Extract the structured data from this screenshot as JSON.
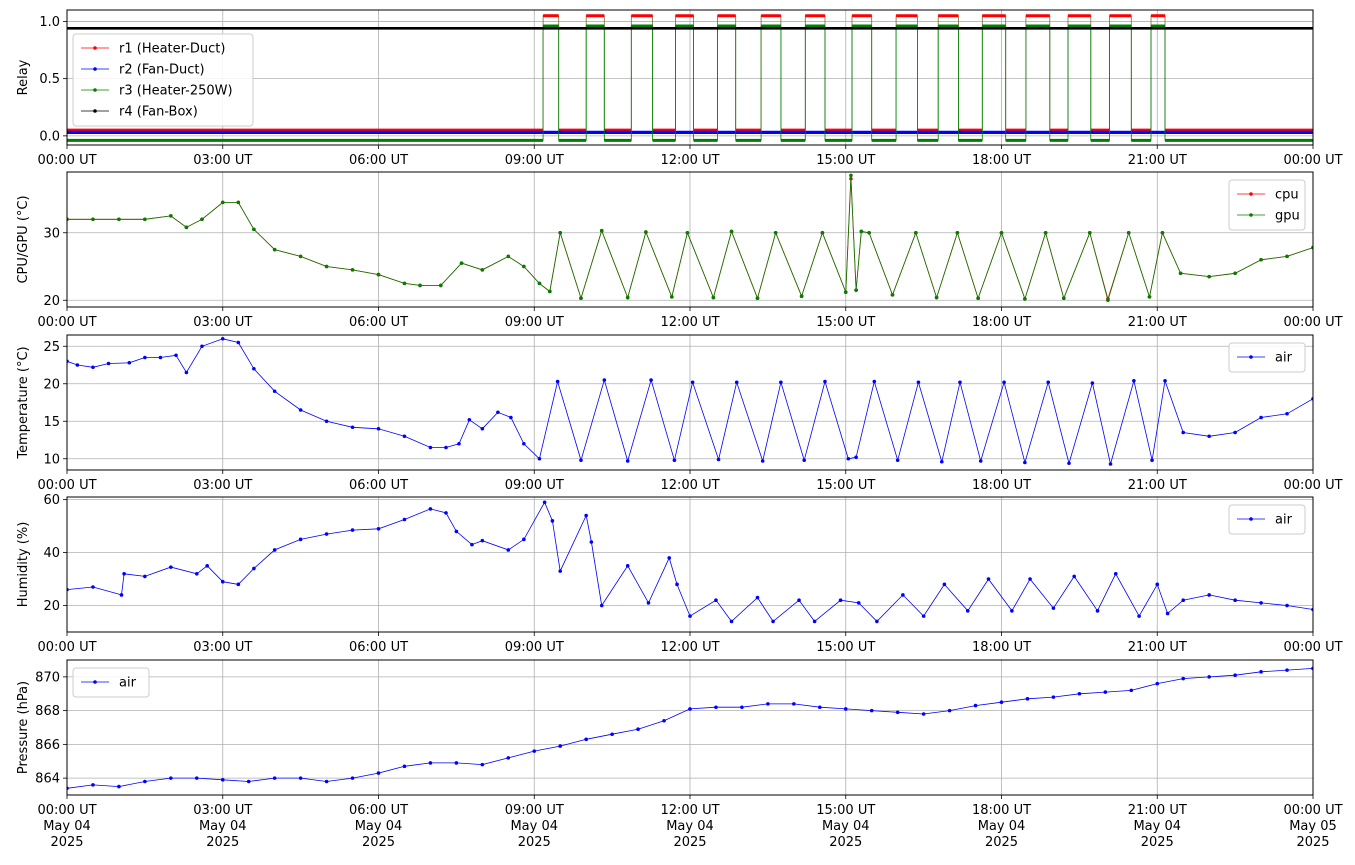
{
  "chart_data": [
    {
      "type": "line",
      "ylabel": "Relay",
      "ylim": [
        -0.08,
        1.1
      ],
      "yticks": [
        0.0,
        0.5,
        1.0
      ],
      "ytick_labels": [
        "0.0",
        "0.5",
        "1.0"
      ],
      "x_tick_labels": [
        "00:00 UT",
        "03:00 UT",
        "06:00 UT",
        "09:00 UT",
        "12:00 UT",
        "15:00 UT",
        "18:00 UT",
        "21:00 UT",
        "00:00 UT"
      ],
      "grid": true,
      "legend_position": "left",
      "legend": [
        "r1 (Heater-Duct)",
        "r2 (Fan-Duct)",
        "r3 (Heater-250W)",
        "r4 (Fan-Box)"
      ],
      "colors": {
        "r1": "#ff0000",
        "r2": "#0000ff",
        "r3": "#008000",
        "r4": "#000000"
      },
      "series": [
        {
          "name": "r1 (Heater-Duct)",
          "on_intervals": [
            [
              9.17,
              9.47
            ],
            [
              10.0,
              10.35
            ],
            [
              10.87,
              11.28
            ],
            [
              11.72,
              12.07
            ],
            [
              12.53,
              12.88
            ],
            [
              13.37,
              13.75
            ],
            [
              14.22,
              14.6
            ],
            [
              15.12,
              15.5
            ],
            [
              15.97,
              16.38
            ],
            [
              16.78,
              17.17
            ],
            [
              17.63,
              18.08
            ],
            [
              18.47,
              18.93
            ],
            [
              19.28,
              19.72
            ],
            [
              20.08,
              20.5
            ],
            [
              20.88,
              21.15
            ]
          ],
          "on_value": 1.05,
          "off_value": 0.05
        },
        {
          "name": "r2 (Fan-Duct)",
          "value": 0.03
        },
        {
          "name": "r3 (Heater-250W)",
          "on_intervals": [
            [
              9.17,
              9.47
            ],
            [
              10.0,
              10.35
            ],
            [
              10.87,
              11.28
            ],
            [
              11.72,
              12.07
            ],
            [
              12.53,
              12.88
            ],
            [
              13.37,
              13.75
            ],
            [
              14.22,
              14.6
            ],
            [
              15.12,
              15.5
            ],
            [
              15.97,
              16.38
            ],
            [
              16.78,
              17.17
            ],
            [
              17.63,
              18.08
            ],
            [
              18.47,
              18.93
            ],
            [
              19.28,
              19.72
            ],
            [
              20.08,
              20.5
            ],
            [
              20.88,
              21.15
            ]
          ],
          "on_value": 0.96,
          "off_value": -0.04
        },
        {
          "name": "r4 (Fan-Box)",
          "value": 0.94
        }
      ]
    },
    {
      "type": "line",
      "ylabel": "CPU/GPU (°C)",
      "ylim": [
        19,
        39
      ],
      "yticks": [
        20,
        30
      ],
      "ytick_labels": [
        "20",
        "30"
      ],
      "x_tick_labels": [
        "00:00 UT",
        "03:00 UT",
        "06:00 UT",
        "09:00 UT",
        "12:00 UT",
        "15:00 UT",
        "18:00 UT",
        "21:00 UT",
        "00:00 UT"
      ],
      "grid": true,
      "legend_position": "top-right",
      "legend": [
        "cpu",
        "gpu"
      ],
      "colors": {
        "cpu": "#ff0000",
        "gpu": "#008000"
      },
      "series": [
        {
          "name": "cpu",
          "x": [
            0,
            0.5,
            1,
            1.5,
            2,
            2.3,
            2.6,
            3,
            3.3,
            3.6,
            4,
            4.5,
            5,
            5.5,
            6,
            6.5,
            6.8,
            7.2,
            7.6,
            8,
            8.5,
            8.8,
            9.1,
            9.3,
            9.5,
            9.9,
            10.3,
            10.8,
            11.15,
            11.65,
            11.95,
            12.45,
            12.8,
            13.3,
            13.65,
            14.15,
            14.55,
            15.0,
            15.1,
            15.2,
            15.3,
            15.45,
            15.9,
            16.35,
            16.75,
            17.15,
            17.55,
            18.0,
            18.45,
            18.85,
            19.2,
            19.7,
            20.05,
            20.45,
            20.85,
            21.1,
            21.45,
            22,
            22.5,
            23,
            23.5,
            24
          ],
          "y": [
            32,
            32,
            32,
            32,
            32.5,
            30.8,
            32,
            34.5,
            34.5,
            30.5,
            27.5,
            26.5,
            25,
            24.5,
            23.8,
            22.5,
            22.2,
            22.2,
            25.5,
            24.5,
            26.5,
            25,
            22.5,
            21.3,
            30,
            20.3,
            30.3,
            20.4,
            30.1,
            20.5,
            30.0,
            20.4,
            30.2,
            20.3,
            30.0,
            20.6,
            30.0,
            21.2,
            38,
            21.5,
            30.2,
            30.0,
            20.8,
            30.0,
            20.4,
            30.0,
            20.3,
            30.0,
            20.2,
            30.0,
            20.3,
            30.0,
            20.2,
            30.0,
            20.5,
            30.0,
            24,
            23.5,
            24,
            26,
            26.5,
            27.8
          ]
        },
        {
          "name": "gpu",
          "x": [
            0,
            0.5,
            1,
            1.5,
            2,
            2.3,
            2.6,
            3,
            3.3,
            3.6,
            4,
            4.5,
            5,
            5.5,
            6,
            6.5,
            6.8,
            7.2,
            7.6,
            8,
            8.5,
            8.8,
            9.1,
            9.3,
            9.5,
            9.9,
            10.3,
            10.8,
            11.15,
            11.65,
            11.95,
            12.45,
            12.8,
            13.3,
            13.65,
            14.15,
            14.55,
            15.0,
            15.1,
            15.2,
            15.3,
            15.45,
            15.9,
            16.35,
            16.75,
            17.15,
            17.55,
            18.0,
            18.45,
            18.85,
            19.2,
            19.7,
            20.05,
            20.45,
            20.85,
            21.1,
            21.45,
            22,
            22.5,
            23,
            23.5,
            24
          ],
          "y": [
            32,
            32,
            32,
            32,
            32.5,
            30.8,
            32,
            34.5,
            34.5,
            30.5,
            27.5,
            26.5,
            25,
            24.5,
            23.8,
            22.5,
            22.2,
            22.2,
            25.5,
            24.5,
            26.5,
            25,
            22.5,
            21.3,
            30,
            20.3,
            30.3,
            20.4,
            30.1,
            20.5,
            30.0,
            20.4,
            30.2,
            20.3,
            30.0,
            20.6,
            30.0,
            21.2,
            38.5,
            21.5,
            30.2,
            30.0,
            20.8,
            30.0,
            20.4,
            30.0,
            20.3,
            30.0,
            20.2,
            30.0,
            20.3,
            30.0,
            20.0,
            30.0,
            20.5,
            30.0,
            24,
            23.5,
            24,
            26,
            26.5,
            27.8
          ]
        }
      ]
    },
    {
      "type": "line",
      "ylabel": "Temperature (°C)",
      "ylim": [
        8.5,
        26.5
      ],
      "yticks": [
        10,
        15,
        20,
        25
      ],
      "ytick_labels": [
        "10",
        "15",
        "20",
        "25"
      ],
      "x_tick_labels": [
        "00:00 UT",
        "03:00 UT",
        "06:00 UT",
        "09:00 UT",
        "12:00 UT",
        "15:00 UT",
        "18:00 UT",
        "21:00 UT",
        "00:00 UT"
      ],
      "grid": true,
      "legend_position": "top-right",
      "legend": [
        "air"
      ],
      "colors": {
        "air": "#0000ff"
      },
      "series": [
        {
          "name": "air",
          "x": [
            0,
            0.2,
            0.5,
            0.8,
            1.2,
            1.5,
            1.8,
            2.1,
            2.3,
            2.6,
            3.0,
            3.3,
            3.6,
            4.0,
            4.5,
            5.0,
            5.5,
            6.0,
            6.5,
            7.0,
            7.3,
            7.55,
            7.75,
            8.0,
            8.3,
            8.55,
            8.8,
            9.1,
            9.45,
            9.9,
            10.35,
            10.8,
            11.25,
            11.7,
            12.05,
            12.55,
            12.9,
            13.4,
            13.75,
            14.2,
            14.6,
            15.05,
            15.2,
            15.55,
            16.0,
            16.4,
            16.85,
            17.2,
            17.6,
            18.05,
            18.45,
            18.9,
            19.3,
            19.75,
            20.1,
            20.55,
            20.9,
            21.15,
            21.5,
            22,
            22.5,
            23,
            23.5,
            24
          ],
          "y": [
            23,
            22.5,
            22.2,
            22.7,
            22.8,
            23.5,
            23.5,
            23.8,
            21.5,
            25,
            26,
            25.5,
            22,
            19,
            16.5,
            15,
            14.2,
            14.0,
            13.0,
            11.5,
            11.5,
            12,
            15.2,
            14,
            16.2,
            15.5,
            12,
            10,
            20.3,
            9.8,
            20.5,
            9.7,
            20.5,
            9.8,
            20.2,
            9.9,
            20.2,
            9.7,
            20.2,
            9.8,
            20.3,
            10,
            10.2,
            20.3,
            9.8,
            20.2,
            9.6,
            20.2,
            9.7,
            20.2,
            9.5,
            20.2,
            9.4,
            20.1,
            9.3,
            20.4,
            9.8,
            20.4,
            13.5,
            13,
            13.5,
            15.5,
            16,
            18
          ]
        }
      ]
    },
    {
      "type": "line",
      "ylabel": "Humidity (%)",
      "ylim": [
        10,
        61
      ],
      "yticks": [
        20,
        40,
        60
      ],
      "ytick_labels": [
        "20",
        "40",
        "60"
      ],
      "x_tick_labels": [
        "00:00 UT",
        "03:00 UT",
        "06:00 UT",
        "09:00 UT",
        "12:00 UT",
        "15:00 UT",
        "18:00 UT",
        "21:00 UT",
        "00:00 UT"
      ],
      "grid": true,
      "legend_position": "top-right",
      "legend": [
        "air"
      ],
      "colors": {
        "air": "#0000ff"
      },
      "series": [
        {
          "name": "air",
          "x": [
            0,
            0.5,
            1.05,
            1.1,
            1.5,
            2.0,
            2.5,
            2.7,
            3.0,
            3.3,
            3.6,
            4.0,
            4.5,
            5.0,
            5.5,
            6.0,
            6.5,
            7.0,
            7.3,
            7.5,
            7.8,
            8.0,
            8.5,
            8.8,
            9.2,
            9.35,
            9.5,
            10.0,
            10.1,
            10.3,
            10.8,
            11.2,
            11.6,
            11.75,
            12.0,
            12.5,
            12.8,
            13.3,
            13.6,
            14.1,
            14.4,
            14.9,
            15.25,
            15.6,
            16.1,
            16.5,
            16.9,
            17.35,
            17.75,
            18.2,
            18.55,
            19.0,
            19.4,
            19.85,
            20.2,
            20.65,
            21.0,
            21.2,
            21.5,
            22,
            22.5,
            23,
            23.5,
            24
          ],
          "y": [
            26,
            27,
            24,
            32,
            31,
            34.5,
            32,
            35,
            29,
            28,
            34,
            41,
            45,
            47,
            48.5,
            49,
            52.5,
            56.5,
            55,
            48,
            43,
            44.5,
            41,
            45,
            59,
            52,
            33,
            54,
            44,
            20,
            35,
            21,
            38,
            28,
            16,
            22,
            14,
            23,
            14,
            22,
            14,
            22,
            21,
            14,
            24,
            16,
            28,
            18,
            30,
            18,
            30,
            19,
            31,
            18,
            32,
            16,
            28,
            17,
            22,
            24,
            22,
            21,
            20,
            18.5
          ]
        }
      ]
    },
    {
      "type": "line",
      "ylabel": "Pressure (hPa)",
      "ylim": [
        863.0,
        871.0
      ],
      "yticks": [
        864,
        866,
        868,
        870
      ],
      "ytick_labels": [
        "864",
        "866",
        "868",
        "870"
      ],
      "x_tick_labels": [
        "00:00 UT\nMay 04\n2025",
        "03:00 UT\nMay 04\n2025",
        "06:00 UT\nMay 04\n2025",
        "09:00 UT\nMay 04\n2025",
        "12:00 UT\nMay 04\n2025",
        "15:00 UT\nMay 04\n2025",
        "18:00 UT\nMay 04\n2025",
        "21:00 UT\nMay 04\n2025",
        "00:00 UT\nMay 05\n2025"
      ],
      "grid": true,
      "legend_position": "top-left",
      "legend": [
        "air"
      ],
      "colors": {
        "air": "#0000ff"
      },
      "series": [
        {
          "name": "air",
          "x": [
            0,
            0.5,
            1.0,
            1.5,
            2.0,
            2.5,
            3.0,
            3.5,
            4.0,
            4.5,
            5.0,
            5.5,
            6.0,
            6.5,
            7.0,
            7.5,
            8.0,
            8.5,
            9.0,
            9.5,
            10.0,
            10.5,
            11.0,
            11.5,
            12.0,
            12.5,
            13.0,
            13.5,
            14.0,
            14.5,
            15.0,
            15.5,
            16.0,
            16.5,
            17.0,
            17.5,
            18.0,
            18.5,
            19.0,
            19.5,
            20.0,
            20.5,
            21.0,
            21.5,
            22.0,
            22.5,
            23.0,
            23.5,
            24.0
          ],
          "y": [
            863.4,
            863.6,
            863.5,
            863.8,
            864.0,
            864.0,
            863.9,
            863.8,
            864.0,
            864.0,
            863.8,
            864.0,
            864.3,
            864.7,
            864.9,
            864.9,
            864.8,
            865.2,
            865.6,
            865.9,
            866.3,
            866.6,
            866.9,
            867.4,
            868.1,
            868.2,
            868.2,
            868.4,
            868.4,
            868.2,
            868.1,
            868.0,
            867.9,
            867.8,
            868.0,
            868.3,
            868.5,
            868.7,
            868.8,
            869.0,
            869.1,
            869.2,
            869.6,
            869.9,
            870.0,
            870.1,
            870.3,
            870.4,
            870.5
          ]
        }
      ]
    }
  ]
}
